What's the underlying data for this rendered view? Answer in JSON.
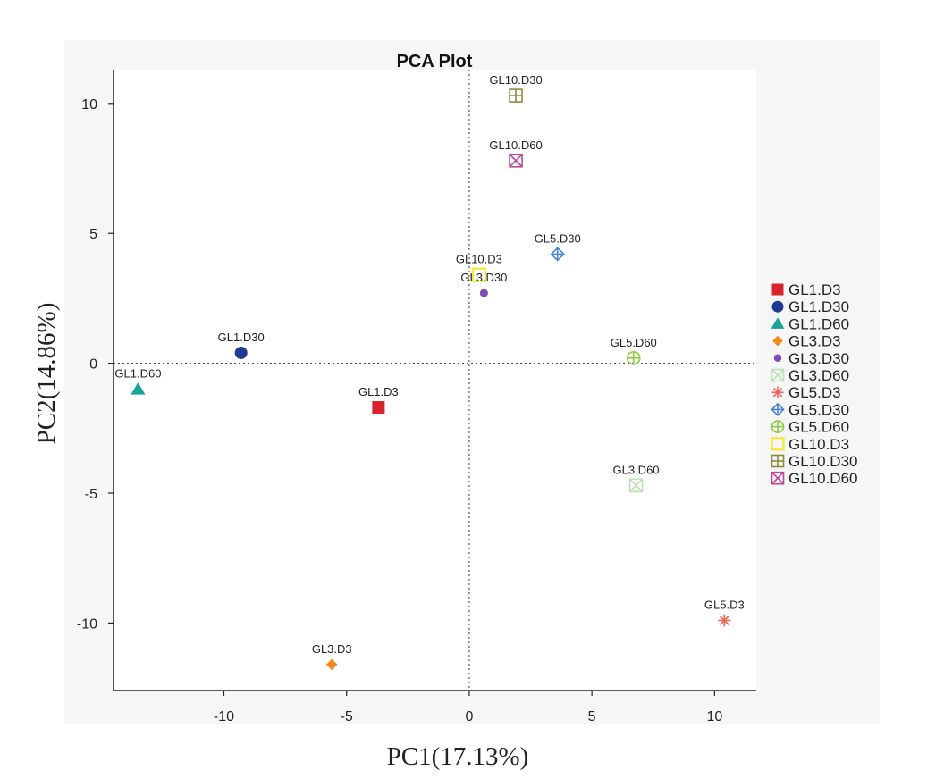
{
  "chart_data": {
    "type": "scatter",
    "title": "PCA Plot",
    "xlabel": "PC1(17.13%)",
    "ylabel": "PC2(14.86%)",
    "xlim": [
      -14.5,
      11.7
    ],
    "ylim": [
      -12.6,
      11.3
    ],
    "xticks": [
      -10,
      -5,
      0,
      5,
      10
    ],
    "yticks": [
      10,
      5,
      0,
      -5,
      -10
    ],
    "grid": false,
    "reference_lines": {
      "x": 0,
      "y": 0,
      "style": "dotted"
    },
    "legend_position": "right",
    "points": [
      {
        "name": "GL1.D3",
        "x": -3.7,
        "y": -1.7,
        "color": "#d7242c",
        "marker": "square"
      },
      {
        "name": "GL1.D30",
        "x": -9.3,
        "y": 0.4,
        "color": "#1f3a93",
        "marker": "circle"
      },
      {
        "name": "GL1.D60",
        "x": -13.5,
        "y": -1.0,
        "color": "#1aa39a",
        "marker": "triangle"
      },
      {
        "name": "GL3.D3",
        "x": -5.6,
        "y": -11.6,
        "color": "#f28a1c",
        "marker": "diamond"
      },
      {
        "name": "GL3.D30",
        "x": 0.6,
        "y": 2.7,
        "color": "#7c4fb8",
        "marker": "small-circle"
      },
      {
        "name": "GL3.D60",
        "x": 6.8,
        "y": -4.7,
        "color": "#b9e3b4",
        "marker": "x-square"
      },
      {
        "name": "GL5.D3",
        "x": 10.4,
        "y": -9.9,
        "color": "#f0625a",
        "marker": "asterisk"
      },
      {
        "name": "GL5.D30",
        "x": 3.6,
        "y": 4.2,
        "color": "#4a86d8",
        "marker": "diamond-plus"
      },
      {
        "name": "GL5.D60",
        "x": 6.7,
        "y": 0.2,
        "color": "#8ccc3e",
        "marker": "circle-plus"
      },
      {
        "name": "GL10.D3",
        "x": 0.4,
        "y": 3.4,
        "color": "#f7e840",
        "marker": "open-square"
      },
      {
        "name": "GL10.D30",
        "x": 1.9,
        "y": 10.3,
        "color": "#8c8c3a",
        "marker": "square-plus"
      },
      {
        "name": "GL10.D60",
        "x": 1.9,
        "y": 7.8,
        "color": "#c0449a",
        "marker": "square-x"
      }
    ]
  }
}
